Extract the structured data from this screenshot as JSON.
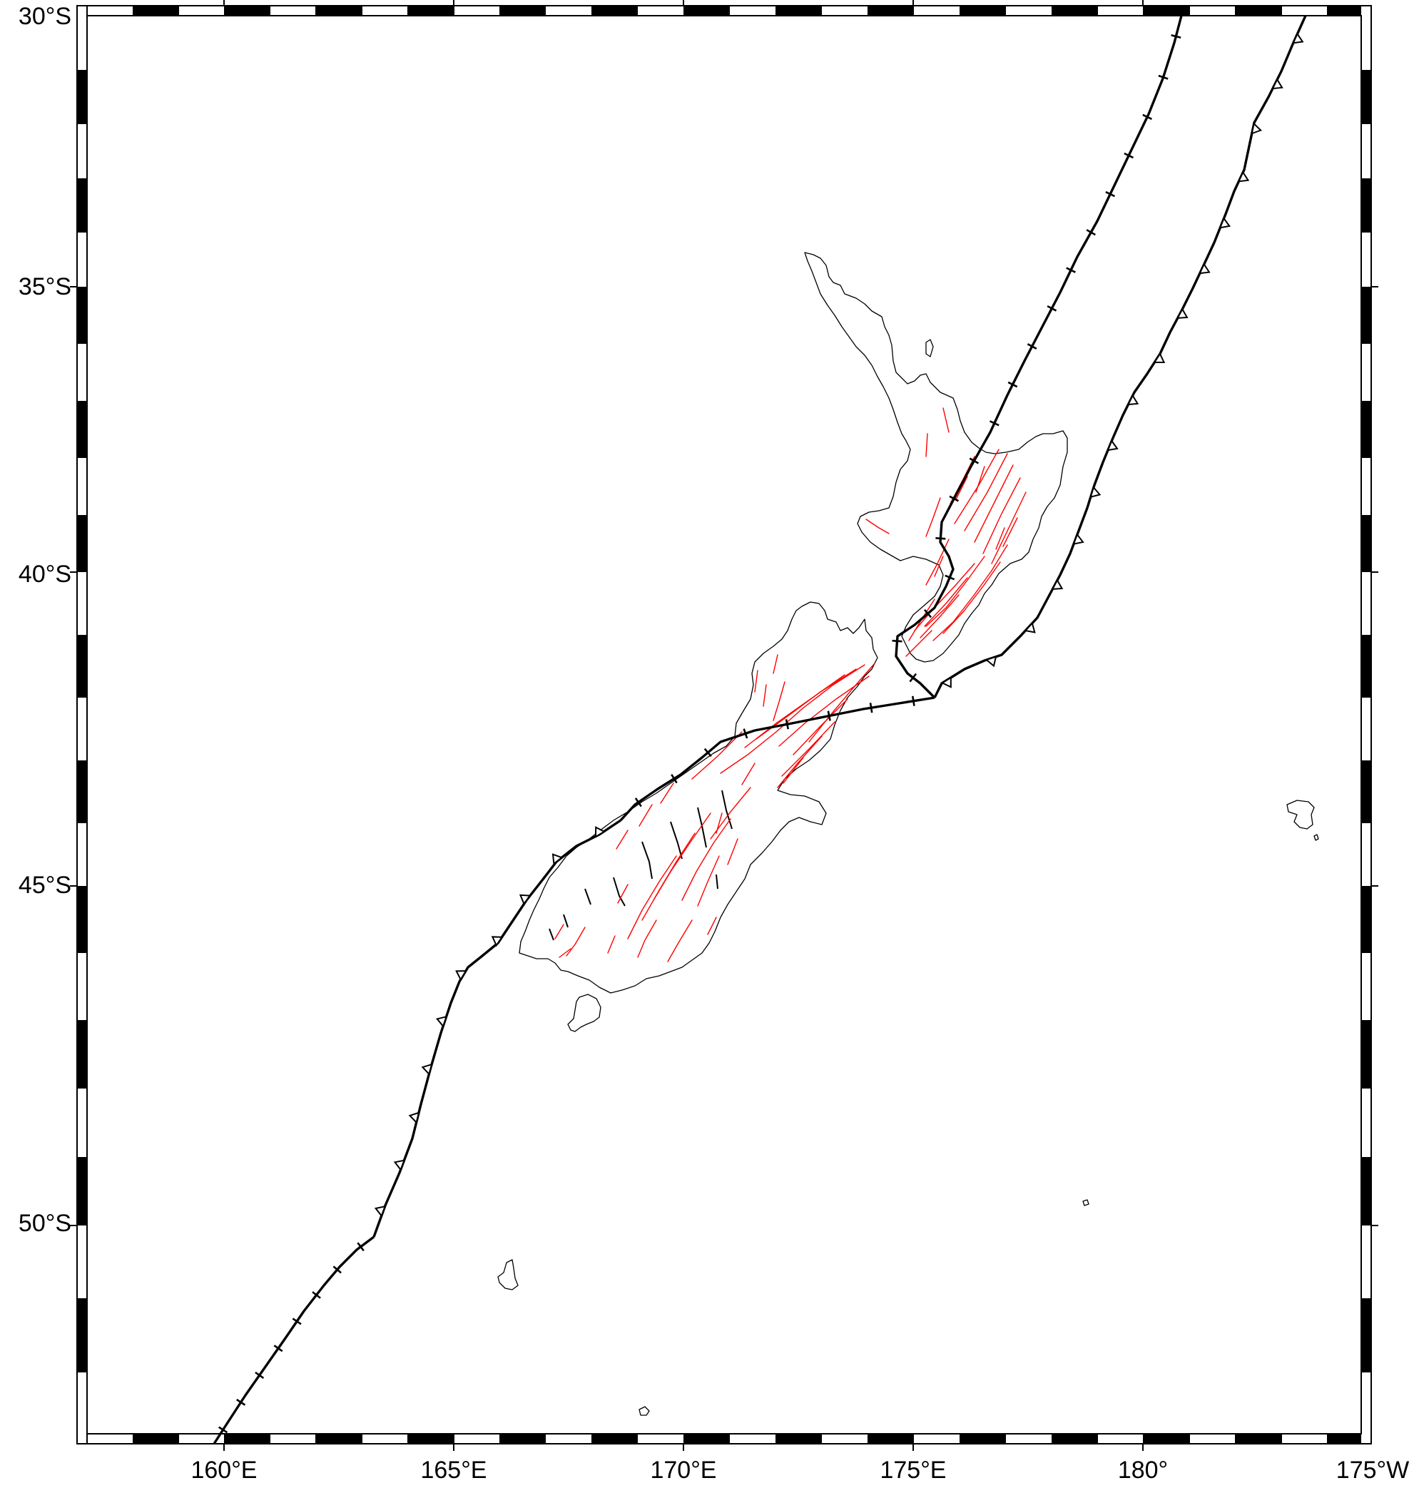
{
  "map": {
    "projection": "mercator",
    "lon_range": [
      157,
      185
    ],
    "lat_range": [
      -56,
      -30
    ],
    "frame_style": "checkered",
    "colors": {
      "coastline": "#000000",
      "faults": "#ff0000",
      "plate_boundary": "#000000",
      "frame": "#000000"
    },
    "lat_labels": [
      {
        "lat": -30,
        "text": "30°S"
      },
      {
        "lat": -35,
        "text": "35°S"
      },
      {
        "lat": -40,
        "text": "40°S"
      },
      {
        "lat": -45,
        "text": "45°S"
      },
      {
        "lat": -50,
        "text": "50°S"
      }
    ],
    "lon_labels": [
      {
        "lon": 160,
        "text": "160°E"
      },
      {
        "lon": 165,
        "text": "165°E"
      },
      {
        "lon": 170,
        "text": "170°E"
      },
      {
        "lon": 175,
        "text": "175°E"
      },
      {
        "lon": 180,
        "text": "180°"
      },
      {
        "lon": 185,
        "text": "175°W"
      }
    ]
  }
}
